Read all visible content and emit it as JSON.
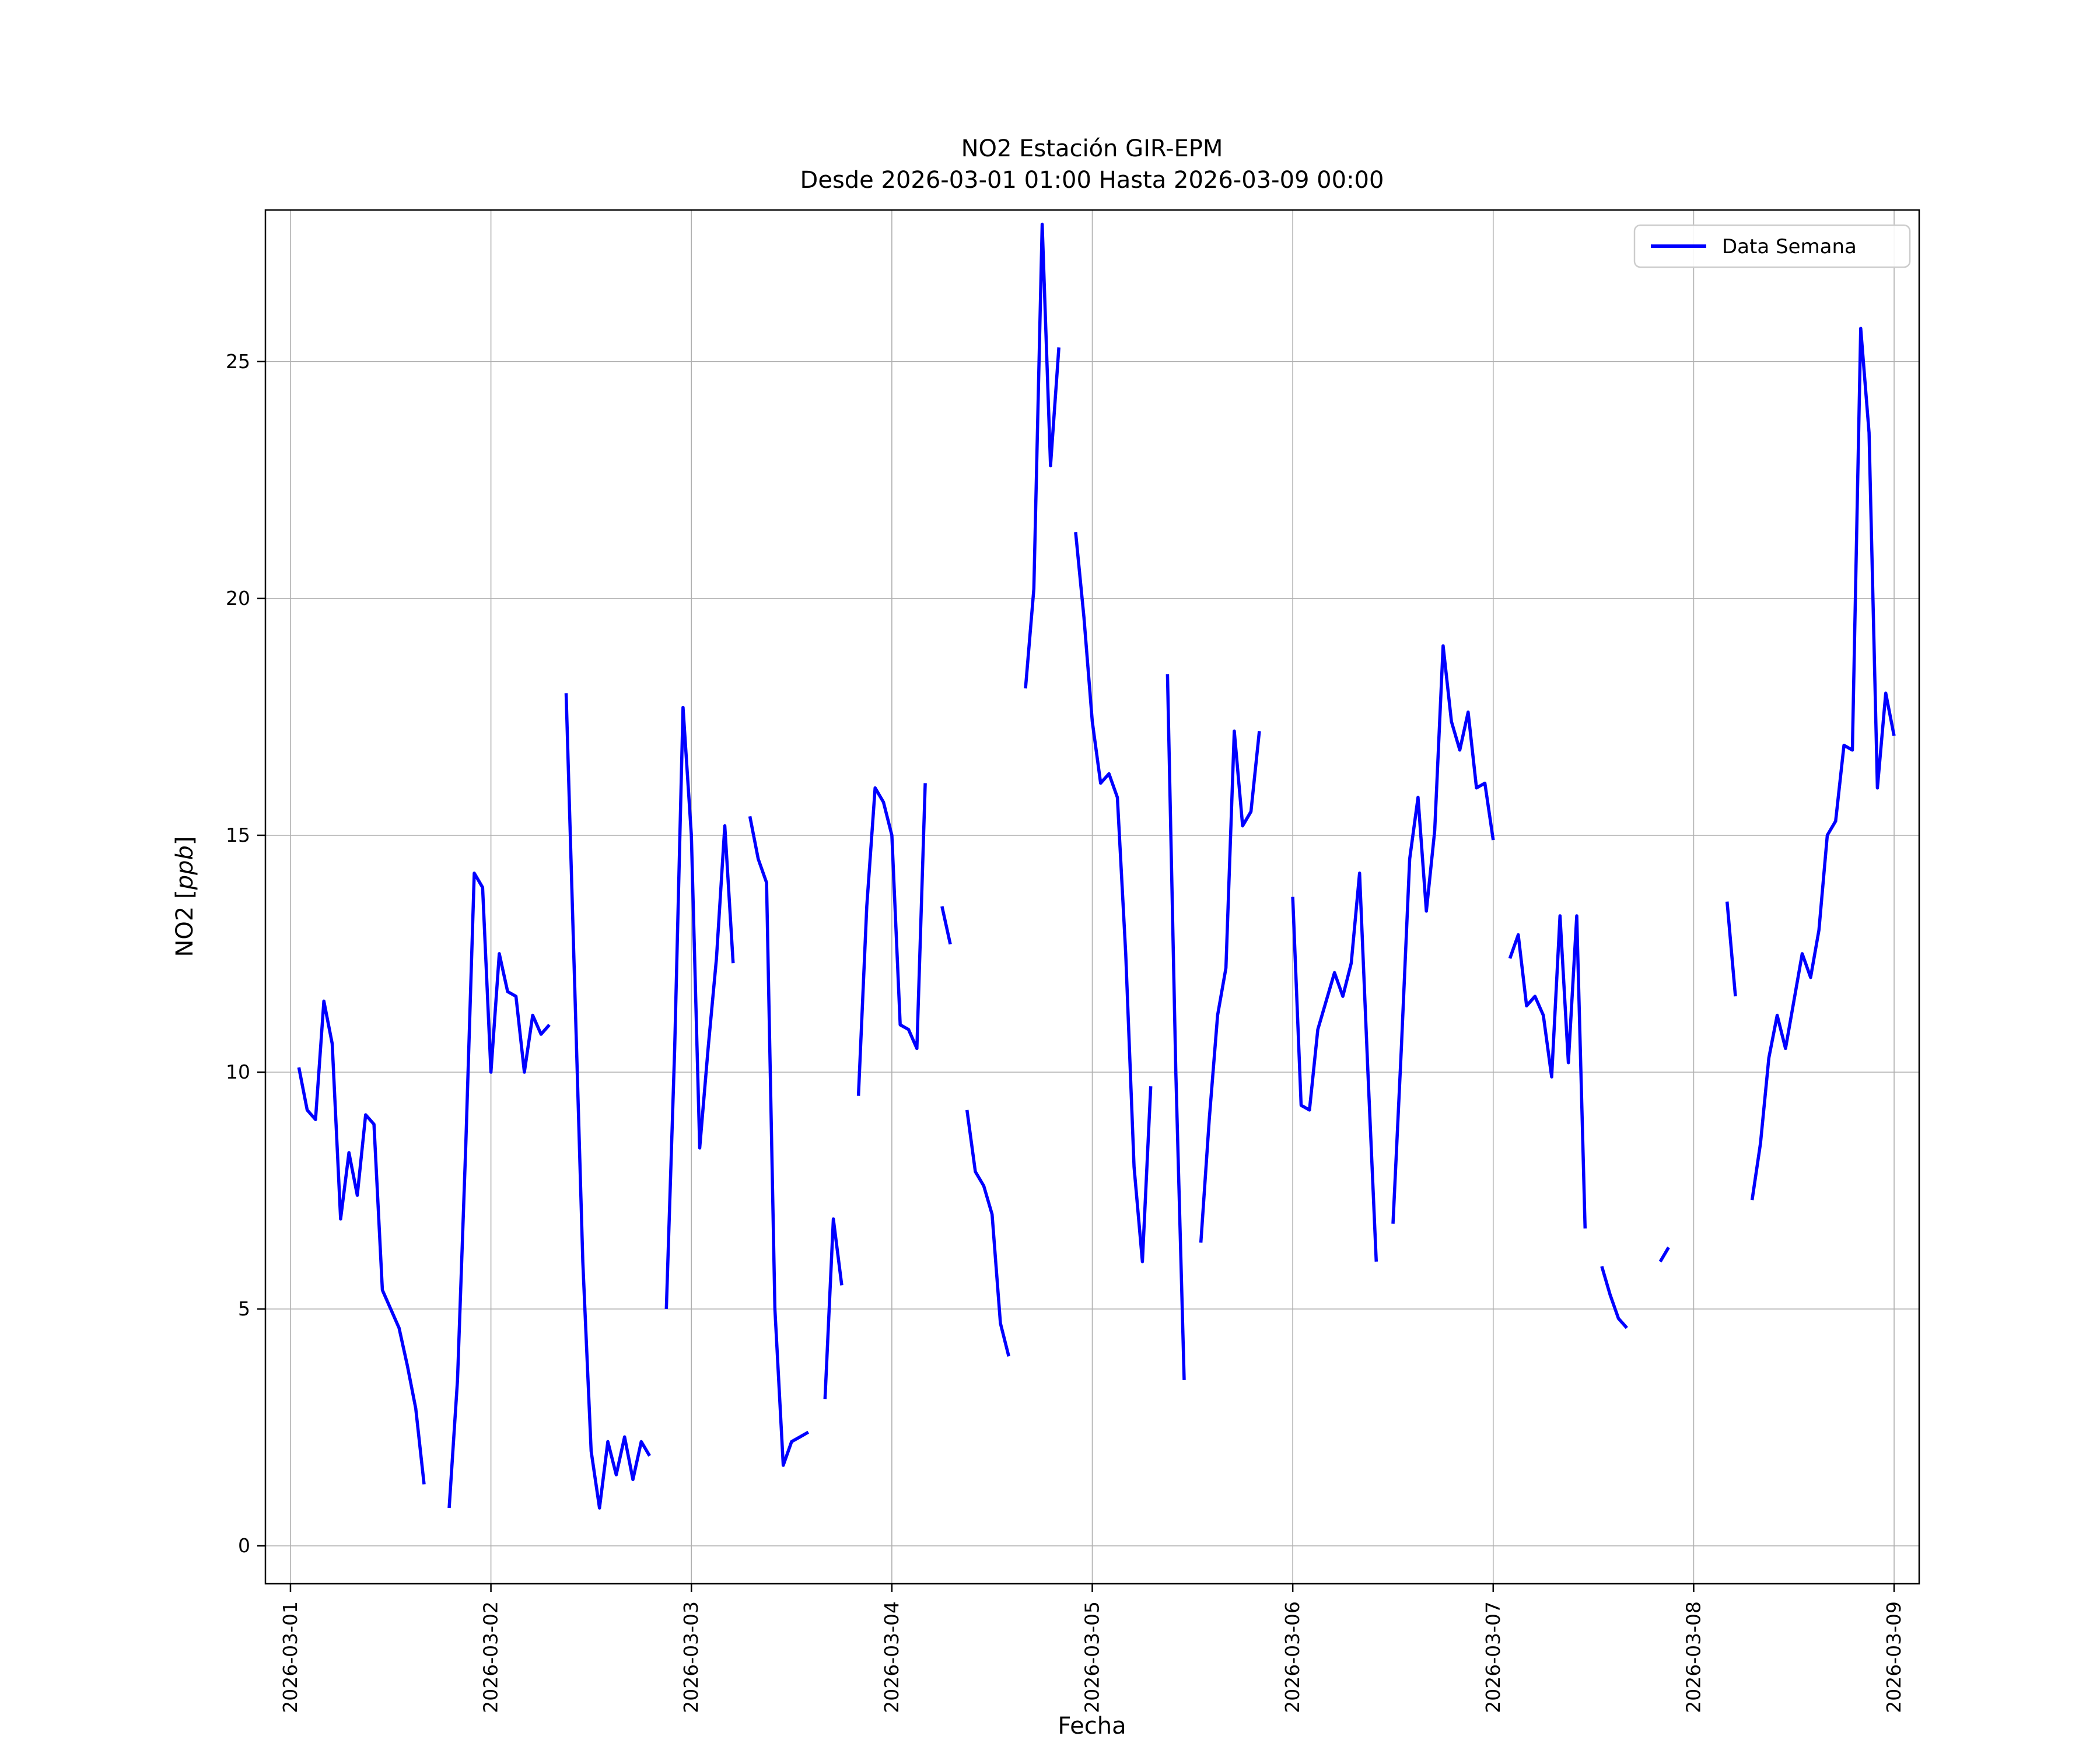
{
  "figure": {
    "title_line1": "NO2 Estación GIR-EPM",
    "title_line2": "Desde 2026-03-01 01:00 Hasta 2026-03-09 00:00",
    "xlabel": "Fecha",
    "ylabel_prefix": "NO2 [",
    "ylabel_italic": "ppb",
    "ylabel_suffix": "]",
    "legend_label": "Data Semana",
    "line_color": "#0000ff",
    "grid_color": "#b0b0b0",
    "axes_edge_color": "#000000",
    "legend_border_color": "#cccccc",
    "background": "#ffffff"
  },
  "chart_data": {
    "type": "line",
    "title": "NO2 Estación GIR-EPM — Desde 2026-03-01 01:00 Hasta 2026-03-09 00:00",
    "xlabel": "Fecha",
    "ylabel": "NO2 [ppb]",
    "series_name": "Data Semana",
    "start": "2026-03-01 01:00",
    "interval_hours": 1,
    "grid": true,
    "legend_position": "upper right",
    "x_tick_labels": [
      "2026-03-01",
      "2026-03-02",
      "2026-03-03",
      "2026-03-04",
      "2026-03-05",
      "2026-03-06",
      "2026-03-07",
      "2026-03-08",
      "2026-03-09"
    ],
    "x_tick_hours": [
      0,
      24,
      48,
      72,
      96,
      120,
      144,
      168,
      192
    ],
    "y_ticks": [
      0,
      5,
      10,
      15,
      20,
      25
    ],
    "xlim_hours": [
      -3,
      195
    ],
    "ylim": [
      -0.8,
      28.2
    ],
    "values": [
      10.1,
      9.2,
      9.0,
      11.5,
      10.6,
      6.9,
      8.3,
      7.4,
      9.1,
      8.9,
      5.4,
      5.0,
      4.6,
      3.8,
      2.9,
      1.3,
      null,
      null,
      0.8,
      3.5,
      8.5,
      14.2,
      13.9,
      10.0,
      12.5,
      11.7,
      11.6,
      10.0,
      11.2,
      10.8,
      11.0,
      null,
      18.0,
      12.0,
      6.0,
      2.0,
      0.8,
      2.2,
      1.5,
      2.3,
      1.4,
      2.2,
      1.9,
      null,
      5.0,
      10.5,
      17.7,
      15.0,
      8.4,
      10.5,
      12.4,
      15.2,
      12.3,
      null,
      15.4,
      14.5,
      14.0,
      5.0,
      1.7,
      2.2,
      2.3,
      2.4,
      null,
      3.1,
      6.9,
      5.5,
      null,
      9.5,
      13.5,
      16.0,
      15.7,
      15.0,
      11.0,
      10.9,
      10.5,
      16.1,
      null,
      13.5,
      12.7,
      null,
      9.2,
      7.9,
      7.6,
      7.0,
      4.7,
      4.0,
      null,
      18.1,
      20.2,
      27.9,
      22.8,
      25.3,
      null,
      21.4,
      19.6,
      17.4,
      16.1,
      16.3,
      15.8,
      12.5,
      8.0,
      6.0,
      9.7,
      null,
      18.4,
      10.0,
      3.5,
      null,
      6.4,
      9.0,
      11.2,
      12.2,
      17.2,
      15.2,
      15.5,
      17.2,
      null,
      null,
      null,
      13.7,
      9.3,
      9.2,
      10.9,
      11.5,
      12.1,
      11.6,
      12.3,
      14.2,
      10.0,
      6.0,
      null,
      6.8,
      10.5,
      14.5,
      15.8,
      13.4,
      15.1,
      19.0,
      17.4,
      16.8,
      17.6,
      16.0,
      16.1,
      14.9,
      null,
      12.4,
      12.9,
      11.4,
      11.6,
      11.2,
      9.9,
      13.3,
      10.2,
      13.3,
      6.7,
      null,
      5.9,
      5.3,
      4.8,
      4.6,
      null,
      5.6,
      null,
      6.0,
      6.3,
      null,
      null,
      null,
      null,
      null,
      null,
      13.6,
      11.6,
      null,
      7.3,
      8.5,
      10.3,
      11.2,
      10.5,
      11.5,
      12.5,
      12.0,
      13.0,
      15.0,
      15.3,
      16.9,
      16.8,
      25.7,
      23.5,
      16.0,
      18.0,
      17.1
    ]
  }
}
